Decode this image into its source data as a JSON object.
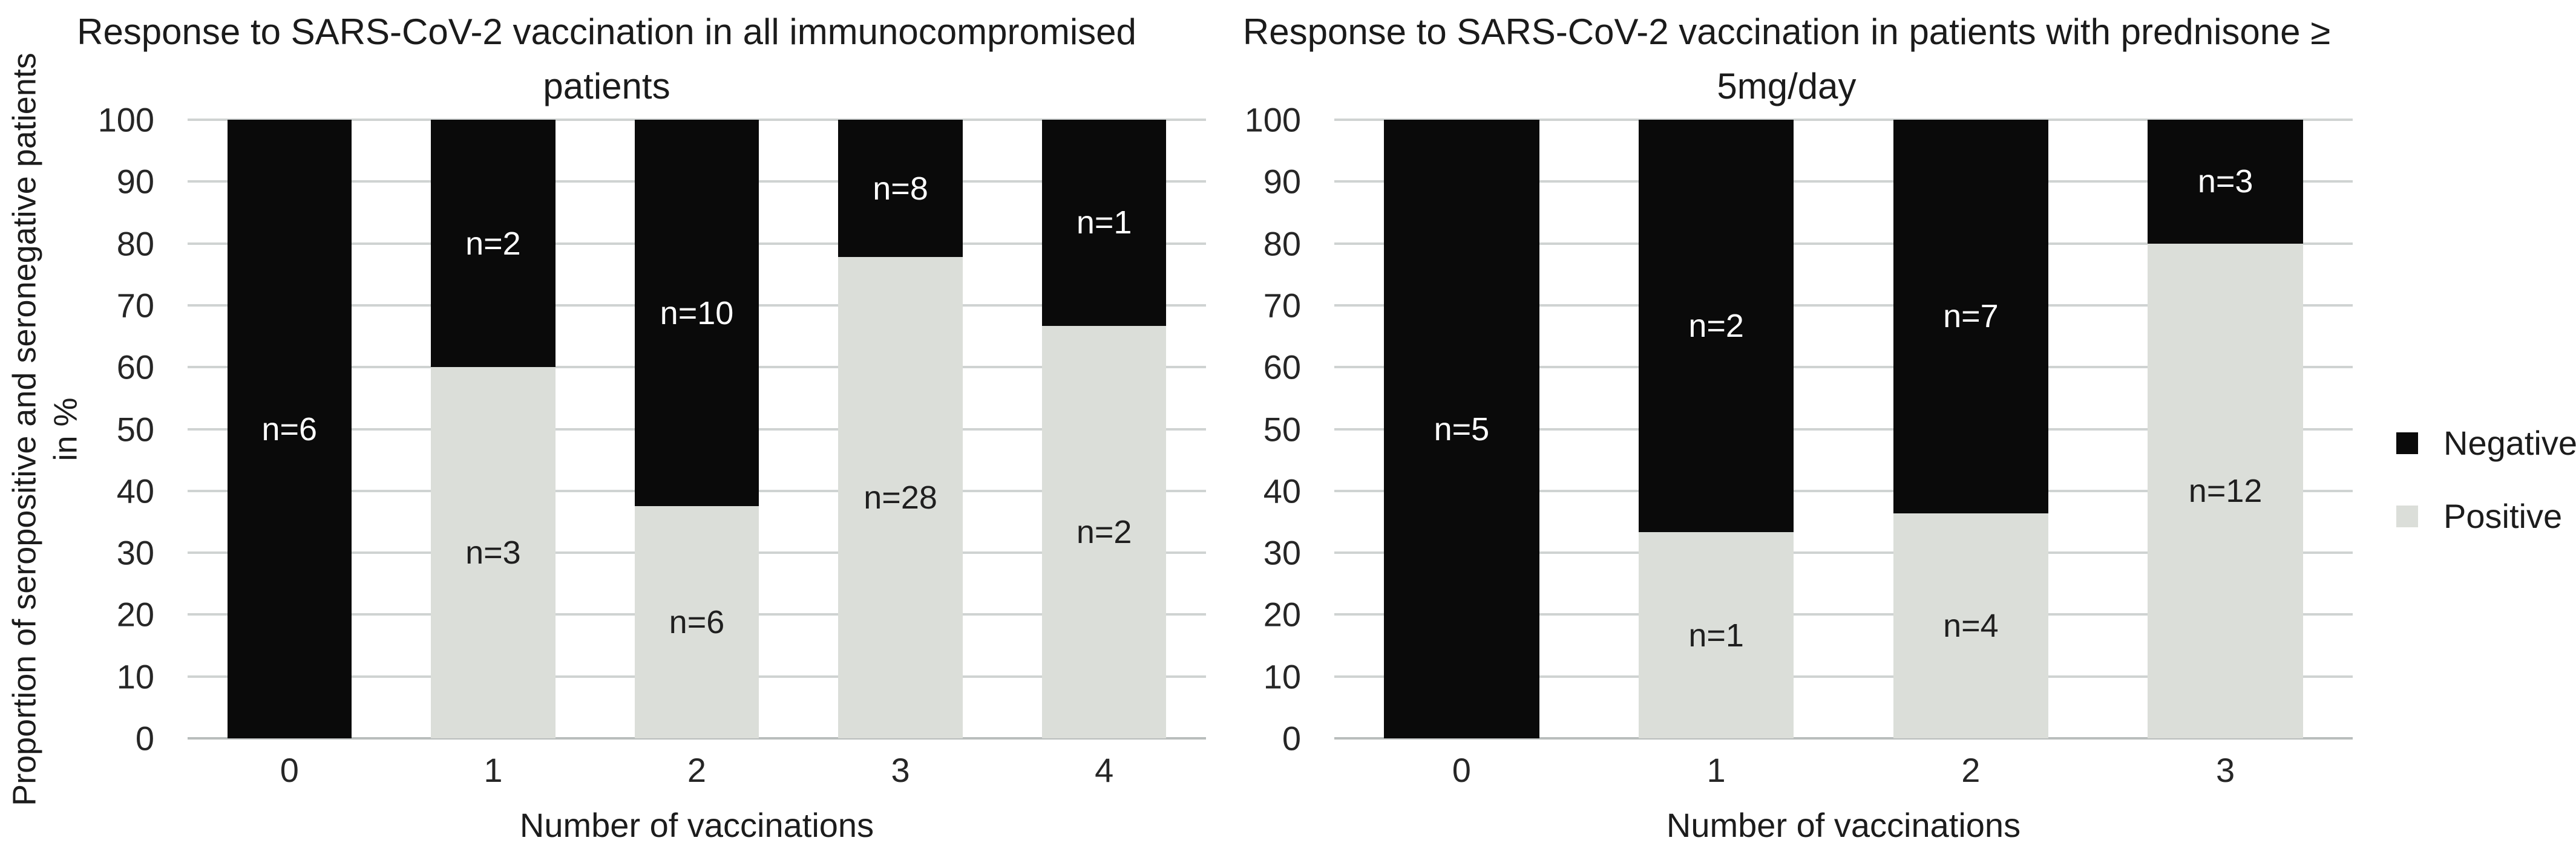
{
  "figure_background": "#ffffff",
  "legend": {
    "position": "right",
    "items": [
      {
        "label": "Negative",
        "color": "#0a0a0a"
      },
      {
        "label": "Positive",
        "color": "#dbded9"
      }
    ]
  },
  "chart_data": [
    {
      "type": "bar",
      "stacked": true,
      "title": "Response to SARS-CoV-2 vaccination in all immunocompromised patients",
      "xlabel": "Number of vaccinations",
      "ylabel": "Proportion of seropositive and seronegative patients in %",
      "ylim": [
        0,
        100
      ],
      "yticks": [
        0,
        10,
        20,
        30,
        40,
        50,
        60,
        70,
        80,
        90,
        100
      ],
      "grid": "horizontal",
      "categories": [
        "0",
        "1",
        "2",
        "3",
        "4"
      ],
      "label_format": "n={count}",
      "series": [
        {
          "name": "Negative",
          "color": "#0a0a0a",
          "label_text_color": "#ffffff",
          "counts": [
            6,
            2,
            10,
            8,
            1
          ],
          "pct": [
            100,
            40,
            62.5,
            22.2,
            33.3
          ]
        },
        {
          "name": "Positive",
          "color": "#dbded9",
          "label_text_color": "#1f1f1f",
          "counts": [
            0,
            3,
            6,
            28,
            2
          ],
          "pct": [
            0,
            60,
            37.5,
            77.8,
            66.7
          ]
        }
      ]
    },
    {
      "type": "bar",
      "stacked": true,
      "title": "Response to SARS-CoV-2 vaccination in patients with prednisone ≥ 5mg/day",
      "xlabel": "Number of vaccinations",
      "ylabel": "",
      "ylim": [
        0,
        100
      ],
      "yticks": [
        0,
        10,
        20,
        30,
        40,
        50,
        60,
        70,
        80,
        90,
        100
      ],
      "grid": "horizontal",
      "categories": [
        "0",
        "1",
        "2",
        "3"
      ],
      "label_format": "n={count}",
      "series": [
        {
          "name": "Negative",
          "color": "#0a0a0a",
          "label_text_color": "#ffffff",
          "counts": [
            5,
            2,
            7,
            3
          ],
          "pct": [
            100,
            66.7,
            63.6,
            20
          ]
        },
        {
          "name": "Positive",
          "color": "#dbded9",
          "label_text_color": "#1f1f1f",
          "counts": [
            0,
            1,
            4,
            12
          ],
          "pct": [
            0,
            33.3,
            36.4,
            80
          ]
        }
      ]
    }
  ]
}
